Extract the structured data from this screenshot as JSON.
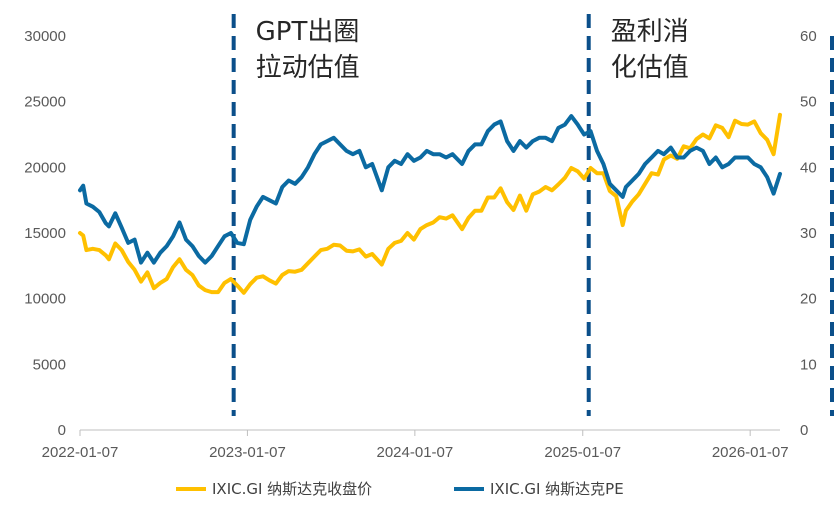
{
  "chart_data": {
    "type": "line",
    "title": "",
    "left_axis": {
      "min": 0,
      "max": 30000,
      "ticks": [
        0,
        5000,
        10000,
        15000,
        20000,
        25000,
        30000
      ]
    },
    "right_axis": {
      "min": 0,
      "max": 60,
      "ticks": [
        0,
        10,
        20,
        30,
        40,
        50,
        60
      ]
    },
    "x_axis": {
      "start": "2022-01-07",
      "end": "2026-03-13",
      "tick_labels": [
        "2022-01-07",
        "2023-01-07",
        "2024-01-07",
        "2025-01-07",
        "2026-01-07"
      ]
    },
    "annotations": [
      {
        "date": "2022-12-08",
        "label_lines": [
          "GPT出圈",
          "拉动估值"
        ]
      },
      {
        "date": "2025-01-20",
        "label_lines": [
          "盈利消",
          "化估值"
        ]
      }
    ],
    "legend_position": "bottom",
    "colors": {
      "close": "#FFC000",
      "pe": "#0B6AA2",
      "divider": "#0B4F8A"
    },
    "series": [
      {
        "name": "IXIC.GI 纳斯达克收盘价",
        "axis": "left",
        "points": [
          [
            "2022-01-07",
            15000
          ],
          [
            "2022-01-14",
            14800
          ],
          [
            "2022-01-21",
            13700
          ],
          [
            "2022-02-04",
            13800
          ],
          [
            "2022-02-18",
            13700
          ],
          [
            "2022-03-04",
            13300
          ],
          [
            "2022-03-11",
            13000
          ],
          [
            "2022-03-25",
            14200
          ],
          [
            "2022-04-08",
            13700
          ],
          [
            "2022-04-22",
            12800
          ],
          [
            "2022-05-06",
            12200
          ],
          [
            "2022-05-20",
            11300
          ],
          [
            "2022-06-03",
            12000
          ],
          [
            "2022-06-17",
            10800
          ],
          [
            "2022-07-01",
            11200
          ],
          [
            "2022-07-15",
            11500
          ],
          [
            "2022-07-29",
            12400
          ],
          [
            "2022-08-12",
            13000
          ],
          [
            "2022-08-26",
            12200
          ],
          [
            "2022-09-09",
            11800
          ],
          [
            "2022-09-23",
            11000
          ],
          [
            "2022-10-07",
            10650
          ],
          [
            "2022-10-21",
            10500
          ],
          [
            "2022-11-04",
            10500
          ],
          [
            "2022-11-18",
            11200
          ],
          [
            "2022-12-02",
            11500
          ],
          [
            "2022-12-16",
            11000
          ],
          [
            "2022-12-30",
            10450
          ],
          [
            "2023-01-13",
            11100
          ],
          [
            "2023-01-27",
            11600
          ],
          [
            "2023-02-10",
            11700
          ],
          [
            "2023-02-24",
            11400
          ],
          [
            "2023-03-10",
            11150
          ],
          [
            "2023-03-24",
            11800
          ],
          [
            "2023-04-07",
            12100
          ],
          [
            "2023-04-21",
            12050
          ],
          [
            "2023-05-05",
            12200
          ],
          [
            "2023-05-19",
            12700
          ],
          [
            "2023-06-02",
            13200
          ],
          [
            "2023-06-16",
            13700
          ],
          [
            "2023-06-30",
            13800
          ],
          [
            "2023-07-14",
            14100
          ],
          [
            "2023-07-28",
            14050
          ],
          [
            "2023-08-11",
            13650
          ],
          [
            "2023-08-25",
            13600
          ],
          [
            "2023-09-08",
            13750
          ],
          [
            "2023-09-22",
            13200
          ],
          [
            "2023-10-06",
            13400
          ],
          [
            "2023-10-27",
            12600
          ],
          [
            "2023-11-10",
            13800
          ],
          [
            "2023-11-24",
            14250
          ],
          [
            "2023-12-08",
            14400
          ],
          [
            "2023-12-22",
            15000
          ],
          [
            "2024-01-05",
            14500
          ],
          [
            "2024-01-19",
            15300
          ],
          [
            "2024-02-02",
            15600
          ],
          [
            "2024-02-16",
            15800
          ],
          [
            "2024-03-01",
            16200
          ],
          [
            "2024-03-15",
            16100
          ],
          [
            "2024-03-29",
            16350
          ],
          [
            "2024-04-19",
            15300
          ],
          [
            "2024-05-03",
            16150
          ],
          [
            "2024-05-17",
            16700
          ],
          [
            "2024-05-31",
            16700
          ],
          [
            "2024-06-14",
            17700
          ],
          [
            "2024-06-28",
            17700
          ],
          [
            "2024-07-12",
            18400
          ],
          [
            "2024-07-26",
            17350
          ],
          [
            "2024-08-09",
            16750
          ],
          [
            "2024-08-23",
            17850
          ],
          [
            "2024-09-06",
            16700
          ],
          [
            "2024-09-20",
            17950
          ],
          [
            "2024-10-04",
            18150
          ],
          [
            "2024-10-18",
            18500
          ],
          [
            "2024-11-01",
            18250
          ],
          [
            "2024-11-15",
            18700
          ],
          [
            "2024-11-29",
            19200
          ],
          [
            "2024-12-13",
            19950
          ],
          [
            "2024-12-27",
            19700
          ],
          [
            "2025-01-10",
            19150
          ],
          [
            "2025-01-24",
            19950
          ],
          [
            "2025-02-07",
            19550
          ],
          [
            "2025-02-21",
            19550
          ],
          [
            "2025-03-07",
            18200
          ],
          [
            "2025-03-21",
            17800
          ],
          [
            "2025-04-04",
            15600
          ],
          [
            "2025-04-11",
            16700
          ],
          [
            "2025-04-25",
            17400
          ],
          [
            "2025-05-09",
            17950
          ],
          [
            "2025-05-23",
            18750
          ],
          [
            "2025-06-06",
            19550
          ],
          [
            "2025-06-20",
            19450
          ],
          [
            "2025-07-03",
            20600
          ],
          [
            "2025-07-18",
            20900
          ],
          [
            "2025-08-01",
            20650
          ],
          [
            "2025-08-15",
            21600
          ],
          [
            "2025-08-29",
            21450
          ],
          [
            "2025-09-12",
            22150
          ],
          [
            "2025-09-26",
            22500
          ],
          [
            "2025-10-10",
            22200
          ],
          [
            "2025-10-24",
            23200
          ],
          [
            "2025-11-07",
            23000
          ],
          [
            "2025-11-21",
            22300
          ],
          [
            "2025-12-05",
            23550
          ],
          [
            "2025-12-19",
            23300
          ],
          [
            "2026-01-02",
            23250
          ],
          [
            "2026-01-16",
            23500
          ],
          [
            "2026-01-30",
            22600
          ],
          [
            "2026-02-13",
            22100
          ],
          [
            "2026-02-27",
            21000
          ],
          [
            "2026-03-13",
            24000
          ]
        ]
      },
      {
        "name": "IXIC.GI 纳斯达克PE",
        "axis": "right",
        "points": [
          [
            "2022-01-07",
            36.5
          ],
          [
            "2022-01-14",
            37.2
          ],
          [
            "2022-01-21",
            34.5
          ],
          [
            "2022-02-04",
            34.0
          ],
          [
            "2022-02-18",
            33.2
          ],
          [
            "2022-03-04",
            31.5
          ],
          [
            "2022-03-11",
            31.0
          ],
          [
            "2022-03-25",
            33.0
          ],
          [
            "2022-04-08",
            30.8
          ],
          [
            "2022-04-22",
            28.5
          ],
          [
            "2022-05-06",
            29.0
          ],
          [
            "2022-05-20",
            25.5
          ],
          [
            "2022-06-03",
            27.0
          ],
          [
            "2022-06-17",
            25.5
          ],
          [
            "2022-07-01",
            27.0
          ],
          [
            "2022-07-15",
            28.0
          ],
          [
            "2022-07-29",
            29.5
          ],
          [
            "2022-08-12",
            31.6
          ],
          [
            "2022-08-26",
            29.0
          ],
          [
            "2022-09-09",
            28.0
          ],
          [
            "2022-09-23",
            26.5
          ],
          [
            "2022-10-07",
            25.5
          ],
          [
            "2022-10-21",
            26.5
          ],
          [
            "2022-11-04",
            28.0
          ],
          [
            "2022-11-18",
            29.5
          ],
          [
            "2022-12-02",
            30.0
          ],
          [
            "2022-12-16",
            28.5
          ],
          [
            "2022-12-30",
            28.3
          ],
          [
            "2023-01-13",
            32.0
          ],
          [
            "2023-01-27",
            34.0
          ],
          [
            "2023-02-10",
            35.5
          ],
          [
            "2023-02-24",
            35.0
          ],
          [
            "2023-03-10",
            34.5
          ],
          [
            "2023-03-24",
            37.0
          ],
          [
            "2023-04-07",
            38.0
          ],
          [
            "2023-04-21",
            37.5
          ],
          [
            "2023-05-05",
            38.5
          ],
          [
            "2023-05-19",
            40.0
          ],
          [
            "2023-06-02",
            42.0
          ],
          [
            "2023-06-16",
            43.5
          ],
          [
            "2023-06-30",
            44.0
          ],
          [
            "2023-07-14",
            44.5
          ],
          [
            "2023-07-28",
            43.5
          ],
          [
            "2023-08-11",
            42.5
          ],
          [
            "2023-08-25",
            42.0
          ],
          [
            "2023-09-08",
            42.5
          ],
          [
            "2023-09-22",
            40.0
          ],
          [
            "2023-10-06",
            40.5
          ],
          [
            "2023-10-27",
            36.5
          ],
          [
            "2023-11-10",
            40.0
          ],
          [
            "2023-11-24",
            41.0
          ],
          [
            "2023-12-08",
            40.5
          ],
          [
            "2023-12-22",
            42.0
          ],
          [
            "2024-01-05",
            41.0
          ],
          [
            "2024-01-19",
            41.5
          ],
          [
            "2024-02-02",
            42.5
          ],
          [
            "2024-02-16",
            42.0
          ],
          [
            "2024-03-01",
            42.0
          ],
          [
            "2024-03-15",
            41.5
          ],
          [
            "2024-03-29",
            42.0
          ],
          [
            "2024-04-19",
            40.5
          ],
          [
            "2024-05-03",
            42.5
          ],
          [
            "2024-05-17",
            43.5
          ],
          [
            "2024-05-31",
            43.5
          ],
          [
            "2024-06-14",
            45.5
          ],
          [
            "2024-06-28",
            46.5
          ],
          [
            "2024-07-12",
            47.0
          ],
          [
            "2024-07-26",
            44.0
          ],
          [
            "2024-08-09",
            42.5
          ],
          [
            "2024-08-23",
            44.0
          ],
          [
            "2024-09-06",
            43.0
          ],
          [
            "2024-09-20",
            44.0
          ],
          [
            "2024-10-04",
            44.5
          ],
          [
            "2024-10-18",
            44.5
          ],
          [
            "2024-11-01",
            44.0
          ],
          [
            "2024-11-15",
            46.0
          ],
          [
            "2024-11-29",
            46.5
          ],
          [
            "2024-12-13",
            47.8
          ],
          [
            "2024-12-27",
            46.5
          ],
          [
            "2025-01-10",
            45.0
          ],
          [
            "2025-01-24",
            45.5
          ],
          [
            "2025-02-07",
            42.5
          ],
          [
            "2025-02-21",
            40.5
          ],
          [
            "2025-03-07",
            37.5
          ],
          [
            "2025-03-21",
            36.5
          ],
          [
            "2025-04-04",
            35.5
          ],
          [
            "2025-04-11",
            37.0
          ],
          [
            "2025-04-25",
            38.0
          ],
          [
            "2025-05-09",
            39.0
          ],
          [
            "2025-05-23",
            40.5
          ],
          [
            "2025-06-06",
            41.5
          ],
          [
            "2025-06-20",
            42.5
          ],
          [
            "2025-07-03",
            42.0
          ],
          [
            "2025-07-18",
            43.0
          ],
          [
            "2025-08-01",
            41.5
          ],
          [
            "2025-08-15",
            41.5
          ],
          [
            "2025-08-29",
            42.5
          ],
          [
            "2025-09-12",
            43.0
          ],
          [
            "2025-09-26",
            42.5
          ],
          [
            "2025-10-10",
            40.5
          ],
          [
            "2025-10-24",
            41.5
          ],
          [
            "2025-11-07",
            40.0
          ],
          [
            "2025-11-21",
            40.5
          ],
          [
            "2025-12-05",
            41.5
          ],
          [
            "2025-12-19",
            41.5
          ],
          [
            "2026-01-02",
            41.5
          ],
          [
            "2026-01-16",
            40.5
          ],
          [
            "2026-01-30",
            40.0
          ],
          [
            "2026-02-13",
            38.5
          ],
          [
            "2026-02-27",
            36.0
          ],
          [
            "2026-03-13",
            39.0
          ]
        ]
      }
    ]
  }
}
